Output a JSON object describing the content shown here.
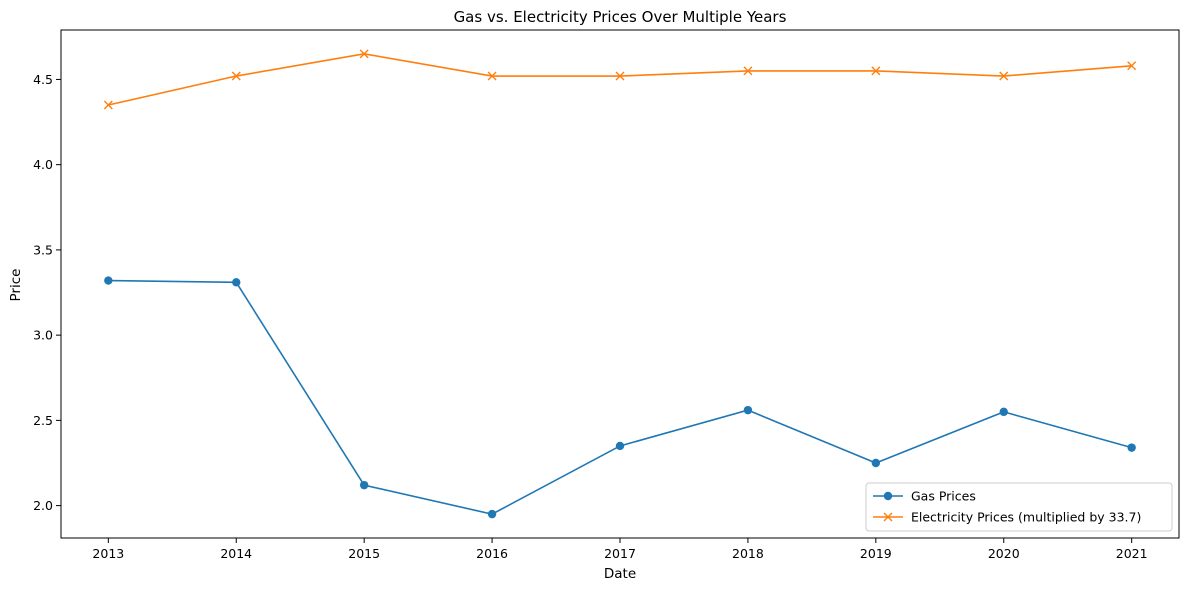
{
  "chart_data": {
    "type": "line",
    "title": "Gas vs. Electricity Prices Over Multiple Years",
    "xlabel": "Date",
    "ylabel": "Price",
    "categories": [
      "2013",
      "2014",
      "2015",
      "2016",
      "2017",
      "2018",
      "2019",
      "2020",
      "2021"
    ],
    "x": [
      2013,
      2014,
      2015,
      2016,
      2017,
      2018,
      2019,
      2020,
      2021
    ],
    "xlim": [
      2012.63,
      2021.37
    ],
    "ylim": [
      1.81,
      4.79
    ],
    "yticks": [
      2.0,
      2.5,
      3.0,
      3.5,
      4.0,
      4.5
    ],
    "ytick_labels": [
      "2.0",
      "2.5",
      "3.0",
      "3.5",
      "4.0",
      "4.5"
    ],
    "grid": false,
    "legend_position": "lower right",
    "series": [
      {
        "name": "Gas Prices",
        "color": "#1f77b4",
        "marker": "circle",
        "values": [
          3.32,
          3.31,
          2.12,
          1.95,
          2.35,
          2.56,
          2.25,
          2.55,
          2.34
        ]
      },
      {
        "name": "Electricity Prices (multiplied by 33.7)",
        "color": "#ff7f0e",
        "marker": "x",
        "values": [
          4.35,
          4.52,
          4.65,
          4.52,
          4.52,
          4.55,
          4.55,
          4.52,
          4.58
        ]
      }
    ]
  }
}
